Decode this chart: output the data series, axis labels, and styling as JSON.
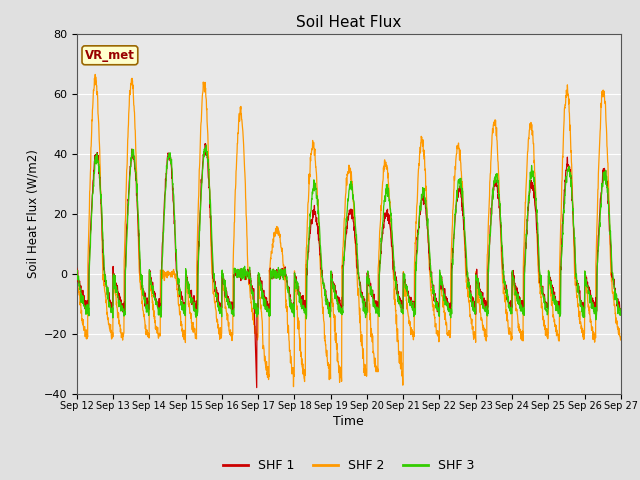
{
  "title": "Soil Heat Flux",
  "xlabel": "Time",
  "ylabel": "Soil Heat Flux (W/m2)",
  "ylim": [
    -40,
    80
  ],
  "yticks": [
    -40,
    -20,
    0,
    20,
    40,
    60,
    80
  ],
  "fig_bg_color": "#e0e0e0",
  "plot_bg_color": "#e8e8e8",
  "shf1_color": "#cc0000",
  "shf2_color": "#ff9900",
  "shf3_color": "#33cc00",
  "legend_labels": [
    "SHF 1",
    "SHF 2",
    "SHF 3"
  ],
  "annotation_text": "VR_met",
  "annotation_color": "#990000",
  "annotation_bg": "#ffffcc",
  "annotation_border": "#996600",
  "n_days": 15,
  "points_per_day": 144,
  "x_labels": [
    "Sep 12",
    "Sep 13",
    "Sep 14",
    "Sep 15",
    "Sep 16",
    "Sep 17",
    "Sep 18",
    "Sep 19",
    "Sep 20",
    "Sep 21",
    "Sep 22",
    "Sep 23",
    "Sep 24",
    "Sep 25",
    "Sep 26",
    "Sep 27"
  ]
}
